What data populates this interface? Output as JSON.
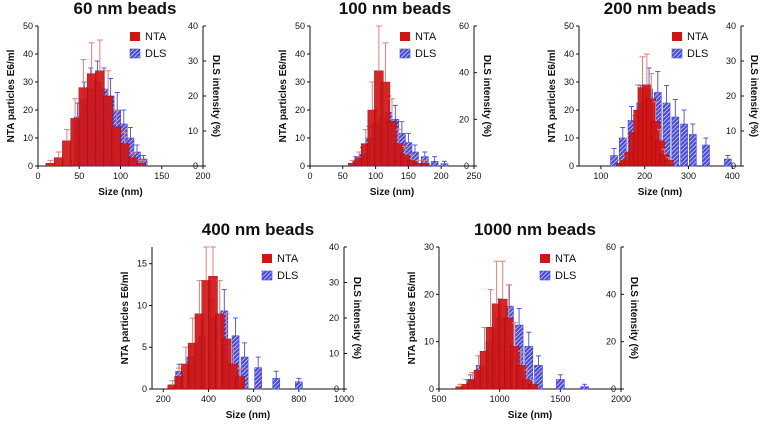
{
  "colors": {
    "nta": "#d01515",
    "nta_error": "#e0807a",
    "dls": "#4a4ad8",
    "dls_stripe": "#ffffff"
  },
  "legend": {
    "nta_label": "NTA",
    "dls_label": "DLS"
  },
  "chart_data": [
    {
      "type": "bar",
      "title": "60 nm beads",
      "xlabel": "Size (nm)",
      "ylabel": "NTA particles E6/ml",
      "y2label": "DLS intensity (%)",
      "xlim": [
        0,
        200
      ],
      "xticks": [
        0,
        50,
        100,
        150,
        200
      ],
      "ylim": [
        0,
        50
      ],
      "yticks": [
        0,
        10,
        20,
        30,
        40,
        50
      ],
      "y2lim": [
        0,
        40
      ],
      "y2ticks": [
        0,
        10,
        20,
        30,
        40
      ],
      "nta": {
        "name": "NTA",
        "x": [
          15,
          25,
          35,
          45,
          55,
          65,
          75,
          85,
          95,
          105,
          115,
          125
        ],
        "values": [
          1,
          3,
          9,
          17,
          28,
          33,
          34,
          25,
          14,
          8,
          3,
          1
        ],
        "errors": [
          1,
          2,
          4,
          7,
          10,
          11,
          11,
          9,
          6,
          4,
          2,
          1
        ]
      },
      "dls": {
        "name": "DLS",
        "x": [
          48,
          56,
          64,
          72,
          80,
          88,
          96,
          104,
          112,
          120,
          128
        ],
        "values": [
          14,
          19,
          22,
          24,
          22,
          20,
          16,
          12,
          8,
          4,
          2
        ],
        "errors": [
          4,
          5,
          6,
          6,
          6,
          5,
          5,
          4,
          3,
          2,
          1
        ]
      }
    },
    {
      "type": "bar",
      "title": "100 nm beads",
      "xlabel": "Size (nm)",
      "ylabel": "NTA particles E6/ml",
      "y2label": "DLS intensity (%)",
      "xlim": [
        0,
        250
      ],
      "xticks": [
        0,
        50,
        100,
        150,
        200,
        250
      ],
      "ylim": [
        0,
        50
      ],
      "yticks": [
        0,
        10,
        20,
        30,
        40,
        50
      ],
      "y2lim": [
        0,
        60
      ],
      "y2ticks": [
        0,
        20,
        40,
        60
      ],
      "nta": {
        "name": "NTA",
        "x": [
          65,
          75,
          85,
          95,
          105,
          115,
          125,
          135,
          145,
          155,
          165,
          175
        ],
        "values": [
          1,
          3,
          8,
          20,
          34,
          30,
          16,
          8,
          4,
          2,
          1,
          1
        ],
        "errors": [
          1,
          2,
          5,
          10,
          18,
          14,
          8,
          5,
          3,
          2,
          1,
          1
        ]
      },
      "dls": {
        "name": "DLS",
        "x": [
          70,
          80,
          90,
          100,
          110,
          120,
          130,
          140,
          150,
          160,
          175,
          190,
          205
        ],
        "values": [
          2,
          5,
          12,
          18,
          21,
          23,
          20,
          14,
          10,
          6,
          4,
          2,
          1
        ],
        "errors": [
          2,
          3,
          5,
          6,
          7,
          7,
          6,
          5,
          4,
          3,
          2,
          2,
          1
        ]
      }
    },
    {
      "type": "bar",
      "title": "200 nm beads",
      "xlabel": "Size (nm)",
      "ylabel": "NTA particles E6/ml",
      "y2label": "DLS intensity (%)",
      "xlim": [
        50,
        420
      ],
      "xticks": [
        100,
        200,
        300,
        400
      ],
      "ylim": [
        0,
        50
      ],
      "yticks": [
        0,
        10,
        20,
        30,
        40,
        50
      ],
      "y2lim": [
        0,
        40
      ],
      "y2ticks": [
        0,
        10,
        20,
        30,
        40
      ],
      "nta": {
        "name": "NTA",
        "x": [
          145,
          155,
          165,
          175,
          185,
          195,
          205,
          215,
          225,
          235,
          245,
          255
        ],
        "values": [
          1,
          2,
          5,
          12,
          20,
          28,
          29,
          24,
          16,
          9,
          4,
          2
        ],
        "errors": [
          1,
          2,
          3,
          6,
          9,
          11,
          11,
          9,
          7,
          4,
          2,
          1
        ]
      },
      "dls": {
        "name": "DLS",
        "x": [
          130,
          150,
          170,
          190,
          210,
          230,
          250,
          270,
          290,
          310,
          340,
          390
        ],
        "values": [
          3,
          8,
          13,
          18,
          22,
          21,
          18,
          14,
          12,
          9,
          6,
          2
        ],
        "errors": [
          2,
          3,
          4,
          5,
          6,
          6,
          5,
          5,
          4,
          3,
          2,
          1
        ]
      }
    },
    {
      "type": "bar",
      "title": "400 nm beads",
      "xlabel": "Size (nm)",
      "ylabel": "NTA particles E6/ml",
      "y2label": "DLS intensity (%)",
      "xlim": [
        150,
        1000
      ],
      "xticks": [
        200,
        400,
        600,
        800,
        1000
      ],
      "ylim": [
        0,
        17
      ],
      "yticks": [
        0,
        5,
        10,
        15
      ],
      "y2lim": [
        0,
        40
      ],
      "y2ticks": [
        0,
        10,
        20,
        30,
        40
      ],
      "nta": {
        "name": "NTA",
        "x": [
          240,
          270,
          300,
          330,
          360,
          390,
          420,
          450,
          480,
          510,
          540
        ],
        "values": [
          0.5,
          1.5,
          3,
          5.5,
          9,
          13,
          13.5,
          9,
          6,
          3,
          1.5
        ],
        "errors": [
          0.5,
          1,
          2,
          3,
          4,
          4,
          5,
          4,
          3,
          2,
          1
        ]
      },
      "dls": {
        "name": "DLS",
        "x": [
          270,
          320,
          370,
          420,
          470,
          520,
          560,
          620,
          700,
          800
        ],
        "values": [
          5,
          9,
          15,
          20,
          22,
          15,
          9,
          6,
          3,
          2
        ],
        "errors": [
          2,
          3,
          4,
          5,
          6,
          5,
          4,
          3,
          2,
          1
        ]
      }
    },
    {
      "type": "bar",
      "title": "1000 nm beads",
      "xlabel": "Size (nm)",
      "ylabel": "NTA particles E6/ml",
      "y2label": "DLS intensity (%)",
      "xlim": [
        500,
        2000
      ],
      "xticks": [
        500,
        1000,
        1500,
        2000
      ],
      "ylim": [
        0,
        30
      ],
      "yticks": [
        0,
        10,
        20,
        30
      ],
      "y2lim": [
        0,
        60
      ],
      "y2ticks": [
        0,
        20,
        40,
        60
      ],
      "nta": {
        "name": "NTA",
        "x": [
          675,
          725,
          775,
          825,
          875,
          925,
          975,
          1025,
          1075,
          1125,
          1175,
          1225,
          1275
        ],
        "values": [
          0.5,
          1,
          2,
          4,
          8,
          13,
          18,
          19,
          15,
          9,
          5,
          2,
          1
        ],
        "errors": [
          0.5,
          1,
          1.5,
          3,
          5,
          8,
          9,
          8,
          7,
          5,
          3,
          2,
          1
        ]
      },
      "dls": {
        "name": "DLS",
        "x": [
          760,
          840,
          920,
          1000,
          1080,
          1160,
          1240,
          1320,
          1500,
          1700
        ],
        "values": [
          4,
          10,
          20,
          30,
          35,
          27,
          18,
          10,
          4,
          1
        ],
        "errors": [
          2,
          4,
          6,
          8,
          9,
          7,
          6,
          4,
          2,
          1
        ]
      }
    }
  ]
}
